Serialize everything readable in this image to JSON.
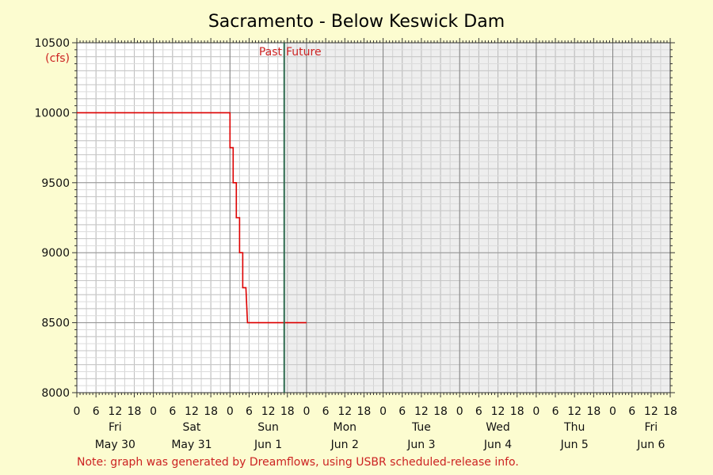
{
  "chart_data": {
    "type": "line",
    "title": "Sacramento - Below Keswick Dam",
    "ylabel": "(cfs)",
    "ylim": [
      8000,
      10500
    ],
    "y_ticks": [
      8000,
      8500,
      9000,
      9500,
      10000,
      10500
    ],
    "x_range_hours": [
      0,
      186
    ],
    "hour_tick_labels": [
      "0",
      "6",
      "12",
      "18"
    ],
    "day_labels": [
      {
        "weekday": "Fri",
        "date": "May 30"
      },
      {
        "weekday": "Sat",
        "date": "May 31"
      },
      {
        "weekday": "Sun",
        "date": "Jun 1"
      },
      {
        "weekday": "Mon",
        "date": "Jun 2"
      },
      {
        "weekday": "Tue",
        "date": "Jun 3"
      },
      {
        "weekday": "Wed",
        "date": "Jun 4"
      },
      {
        "weekday": "Thu",
        "date": "Jun 5"
      },
      {
        "weekday": "Fri",
        "date": "Jun 6"
      }
    ],
    "past_label": "Past",
    "future_label": "Future",
    "now_hour": 65,
    "series": [
      {
        "color": "#dd0000",
        "points": [
          [
            0,
            10000
          ],
          [
            48,
            10000
          ],
          [
            48,
            9750
          ],
          [
            49,
            9750
          ],
          [
            49,
            9500
          ],
          [
            50,
            9500
          ],
          [
            50,
            9250
          ],
          [
            51,
            9250
          ],
          [
            51,
            9000
          ],
          [
            52,
            9000
          ],
          [
            52,
            8750
          ],
          [
            53,
            8750
          ],
          [
            53.5,
            8500
          ],
          [
            72,
            8500
          ]
        ]
      }
    ],
    "grid": true
  },
  "note": "Note: graph was generated by Dreamflows, using USBR scheduled-release info."
}
